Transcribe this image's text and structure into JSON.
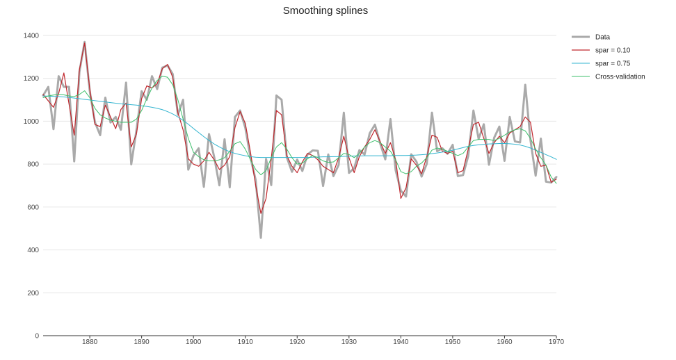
{
  "chart_data": {
    "type": "line",
    "title": "Smoothing splines",
    "xlabel": "",
    "ylabel": "",
    "xlim": [
      1871,
      1970
    ],
    "ylim": [
      0,
      1400
    ],
    "xticks": [
      1880,
      1890,
      1900,
      1910,
      1920,
      1930,
      1940,
      1950,
      1960,
      1970
    ],
    "yticks": [
      0,
      200,
      400,
      600,
      800,
      1000,
      1200,
      1400
    ],
    "grid": true,
    "legend": "right",
    "x": [
      1871,
      1872,
      1873,
      1874,
      1875,
      1876,
      1877,
      1878,
      1879,
      1880,
      1881,
      1882,
      1883,
      1884,
      1885,
      1886,
      1887,
      1888,
      1889,
      1890,
      1891,
      1892,
      1893,
      1894,
      1895,
      1896,
      1897,
      1898,
      1899,
      1900,
      1901,
      1902,
      1903,
      1904,
      1905,
      1906,
      1907,
      1908,
      1909,
      1910,
      1911,
      1912,
      1913,
      1914,
      1915,
      1916,
      1917,
      1918,
      1919,
      1920,
      1921,
      1922,
      1923,
      1924,
      1925,
      1926,
      1927,
      1928,
      1929,
      1930,
      1931,
      1932,
      1933,
      1934,
      1935,
      1936,
      1937,
      1938,
      1939,
      1940,
      1941,
      1942,
      1943,
      1944,
      1945,
      1946,
      1947,
      1948,
      1949,
      1950,
      1951,
      1952,
      1953,
      1954,
      1955,
      1956,
      1957,
      1958,
      1959,
      1960,
      1961,
      1962,
      1963,
      1964,
      1965,
      1966,
      1967,
      1968,
      1969,
      1970
    ],
    "series": [
      {
        "name": "Data",
        "color": "#aaaaaa",
        "values": [
          1120,
          1160,
          963,
          1210,
          1160,
          1160,
          813,
          1230,
          1370,
          1140,
          995,
          935,
          1110,
          994,
          1020,
          960,
          1180,
          799,
          958,
          1140,
          1100,
          1210,
          1150,
          1250,
          1260,
          1220,
          1030,
          1100,
          774,
          840,
          874,
          694,
          940,
          833,
          701,
          916,
          692,
          1020,
          1050,
          969,
          831,
          726,
          456,
          824,
          702,
          1120,
          1100,
          832,
          764,
          821,
          768,
          845,
          864,
          862,
          698,
          845,
          744,
          796,
          1040,
          759,
          781,
          865,
          845,
          944,
          984,
          897,
          822,
          1010,
          771,
          676,
          649,
          846,
          812,
          742,
          801,
          1040,
          860,
          874,
          848,
          890,
          744,
          749,
          838,
          1050,
          918,
          986,
          797,
          923,
          975,
          815,
          1020,
          906,
          901,
          1170,
          912,
          746,
          919,
          718,
          714,
          740
        ]
      },
      {
        "name": "spar = 0.10",
        "color": "#c0272d",
        "values": [
          1125,
          1095,
          1065,
          1130,
          1225,
          1080,
          935,
          1240,
          1365,
          1150,
          985,
          975,
          1075,
          1020,
          965,
          1055,
          1085,
          880,
          940,
          1105,
          1165,
          1155,
          1175,
          1245,
          1265,
          1205,
          1040,
          960,
          825,
          800,
          790,
          815,
          855,
          820,
          775,
          795,
          835,
          970,
          1045,
          990,
          855,
          700,
          570,
          640,
          825,
          1050,
          1030,
          840,
          790,
          760,
          810,
          850,
          840,
          820,
          790,
          775,
          760,
          830,
          930,
          830,
          760,
          835,
          880,
          915,
          960,
          905,
          850,
          900,
          820,
          640,
          690,
          825,
          795,
          755,
          835,
          935,
          925,
          860,
          850,
          860,
          760,
          770,
          870,
          985,
          995,
          920,
          850,
          900,
          930,
          900,
          945,
          960,
          975,
          1020,
          995,
          850,
          790,
          795,
          715,
          730
        ]
      },
      {
        "name": "spar = 0.75",
        "color": "#33b5d0",
        "values": [
          1118,
          1117,
          1116,
          1115,
          1113,
          1111,
          1108,
          1105,
          1102,
          1099,
          1096,
          1093,
          1090,
          1087,
          1084,
          1081,
          1079,
          1077,
          1075,
          1072,
          1069,
          1065,
          1060,
          1054,
          1045,
          1034,
          1020,
          1004,
          986,
          966,
          947,
          928,
          910,
          894,
          880,
          868,
          858,
          850,
          844,
          839,
          835,
          832,
          831,
          831,
          831,
          831,
          831,
          831,
          831,
          831,
          831,
          831,
          832,
          833,
          834,
          834,
          835,
          835,
          836,
          837,
          838,
          838,
          839,
          839,
          839,
          839,
          839,
          839,
          840,
          840,
          840,
          841,
          842,
          844,
          846,
          849,
          852,
          856,
          860,
          865,
          871,
          877,
          883,
          887,
          890,
          892,
          894,
          895,
          896,
          896,
          895,
          893,
          889,
          883,
          875,
          865,
          855,
          844,
          834,
          822
        ]
      },
      {
        "name": "Cross-validation",
        "color": "#3cbf6b",
        "values": [
          1110,
          1118,
          1122,
          1125,
          1123,
          1118,
          1115,
          1125,
          1142,
          1110,
          1060,
          1030,
          1015,
          1005,
          1000,
          995,
          995,
          995,
          1010,
          1050,
          1105,
          1155,
          1190,
          1210,
          1205,
          1170,
          1100,
          1010,
          920,
          855,
          835,
          820,
          815,
          815,
          820,
          830,
          860,
          895,
          905,
          870,
          820,
          775,
          750,
          770,
          830,
          880,
          900,
          870,
          830,
          800,
          805,
          825,
          840,
          830,
          815,
          808,
          810,
          830,
          850,
          845,
          830,
          850,
          880,
          900,
          910,
          900,
          880,
          860,
          820,
          765,
          755,
          765,
          790,
          805,
          830,
          865,
          875,
          870,
          860,
          850,
          840,
          850,
          880,
          910,
          915,
          915,
          915,
          910,
          920,
          935,
          950,
          960,
          965,
          955,
          920,
          870,
          830,
          795,
          740,
          710
        ]
      }
    ]
  }
}
